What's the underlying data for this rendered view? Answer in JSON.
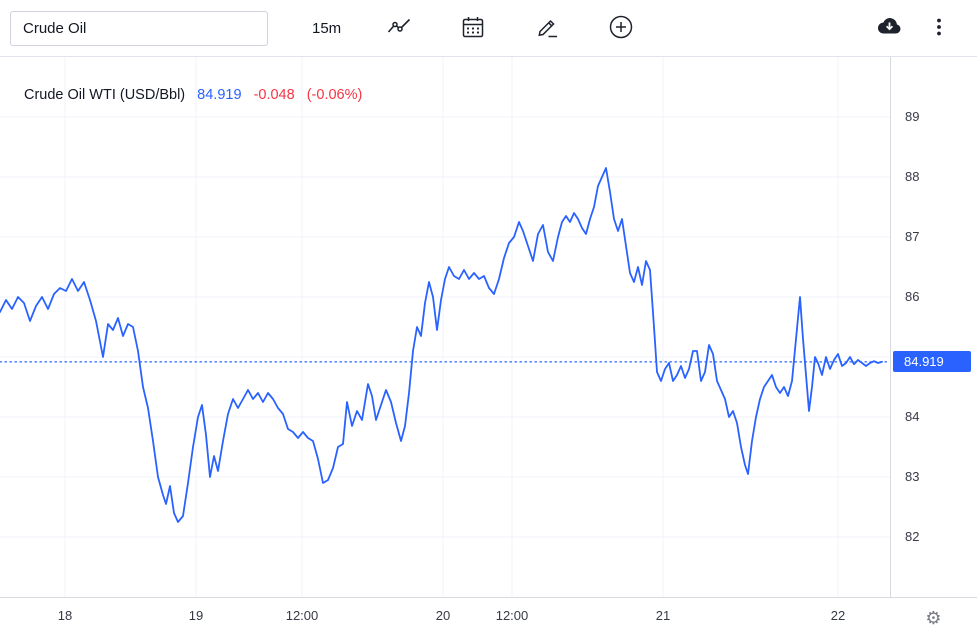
{
  "toolbar": {
    "symbol_value": "Crude Oil",
    "timeframe_label": "15m",
    "icons": [
      "line-style-icon",
      "calendar-icon",
      "draw-icon",
      "add-icon",
      "download-icon",
      "kebab-menu-icon"
    ]
  },
  "legend": {
    "title": "Crude Oil WTI (USD/Bbl)",
    "price": "84.919",
    "change": "-0.048",
    "change_pct": "(-0.06%)"
  },
  "price_axis": {
    "tag_label": "84.919"
  },
  "colors": {
    "line": "#2962ff",
    "price_tag_bg": "#2962ff",
    "price_blue": "#2962ff",
    "change_red": "#f23645",
    "grid": "#f0f3fa",
    "axis_text": "#363a45",
    "icon_dark": "#1e222d"
  },
  "chart_data": {
    "type": "line",
    "title": "Crude Oil WTI (USD/Bbl)",
    "timeframe": "15m",
    "last_price": 84.919,
    "change": -0.048,
    "change_pct": "-0.06%",
    "ylim": [
      81.0,
      90.0
    ],
    "x_domain": [
      0,
      890
    ],
    "y_ticks": [
      89,
      88,
      87,
      86,
      84,
      83,
      82
    ],
    "grid_values": [
      82,
      83,
      84,
      85,
      86,
      87,
      88,
      89
    ],
    "price_line": 84.919,
    "x_ticks": [
      {
        "label": "18",
        "x": 65
      },
      {
        "label": "19",
        "x": 196
      },
      {
        "label": "12:00",
        "x": 302
      },
      {
        "label": "20",
        "x": 443
      },
      {
        "label": "12:00",
        "x": 512
      },
      {
        "label": "21",
        "x": 663
      },
      {
        "label": "22",
        "x": 838
      }
    ],
    "points": [
      [
        0,
        85.75
      ],
      [
        6,
        85.95
      ],
      [
        12,
        85.8
      ],
      [
        18,
        86.0
      ],
      [
        24,
        85.9
      ],
      [
        30,
        85.6
      ],
      [
        36,
        85.85
      ],
      [
        42,
        86.0
      ],
      [
        48,
        85.8
      ],
      [
        54,
        86.05
      ],
      [
        60,
        86.15
      ],
      [
        66,
        86.1
      ],
      [
        72,
        86.3
      ],
      [
        78,
        86.1
      ],
      [
        84,
        86.25
      ],
      [
        90,
        85.95
      ],
      [
        96,
        85.6
      ],
      [
        103,
        85.0
      ],
      [
        108,
        85.55
      ],
      [
        113,
        85.45
      ],
      [
        118,
        85.65
      ],
      [
        123,
        85.35
      ],
      [
        128,
        85.55
      ],
      [
        133,
        85.5
      ],
      [
        138,
        85.1
      ],
      [
        143,
        84.5
      ],
      [
        148,
        84.15
      ],
      [
        153,
        83.6
      ],
      [
        158,
        83.0
      ],
      [
        163,
        82.7
      ],
      [
        166,
        82.55
      ],
      [
        170,
        82.85
      ],
      [
        174,
        82.4
      ],
      [
        178,
        82.25
      ],
      [
        183,
        82.35
      ],
      [
        188,
        82.9
      ],
      [
        193,
        83.5
      ],
      [
        198,
        84.0
      ],
      [
        202,
        84.2
      ],
      [
        206,
        83.7
      ],
      [
        210,
        83.0
      ],
      [
        214,
        83.35
      ],
      [
        218,
        83.1
      ],
      [
        223,
        83.6
      ],
      [
        228,
        84.05
      ],
      [
        233,
        84.3
      ],
      [
        238,
        84.15
      ],
      [
        243,
        84.3
      ],
      [
        248,
        84.45
      ],
      [
        253,
        84.3
      ],
      [
        258,
        84.4
      ],
      [
        263,
        84.25
      ],
      [
        268,
        84.4
      ],
      [
        273,
        84.3
      ],
      [
        278,
        84.15
      ],
      [
        283,
        84.05
      ],
      [
        288,
        83.8
      ],
      [
        293,
        83.75
      ],
      [
        298,
        83.65
      ],
      [
        303,
        83.75
      ],
      [
        308,
        83.65
      ],
      [
        313,
        83.6
      ],
      [
        318,
        83.3
      ],
      [
        323,
        82.9
      ],
      [
        328,
        82.95
      ],
      [
        333,
        83.15
      ],
      [
        338,
        83.5
      ],
      [
        343,
        83.55
      ],
      [
        347,
        84.25
      ],
      [
        352,
        83.85
      ],
      [
        357,
        84.1
      ],
      [
        362,
        83.95
      ],
      [
        368,
        84.55
      ],
      [
        372,
        84.35
      ],
      [
        376,
        83.95
      ],
      [
        381,
        84.2
      ],
      [
        386,
        84.45
      ],
      [
        391,
        84.25
      ],
      [
        396,
        83.9
      ],
      [
        401,
        83.6
      ],
      [
        405,
        83.85
      ],
      [
        409,
        84.4
      ],
      [
        413,
        85.1
      ],
      [
        417,
        85.5
      ],
      [
        421,
        85.35
      ],
      [
        425,
        85.9
      ],
      [
        429,
        86.25
      ],
      [
        433,
        86.0
      ],
      [
        437,
        85.45
      ],
      [
        441,
        85.95
      ],
      [
        445,
        86.3
      ],
      [
        449,
        86.5
      ],
      [
        454,
        86.35
      ],
      [
        459,
        86.3
      ],
      [
        464,
        86.45
      ],
      [
        469,
        86.3
      ],
      [
        474,
        86.4
      ],
      [
        479,
        86.3
      ],
      [
        484,
        86.35
      ],
      [
        489,
        86.15
      ],
      [
        494,
        86.05
      ],
      [
        499,
        86.3
      ],
      [
        504,
        86.65
      ],
      [
        509,
        86.9
      ],
      [
        514,
        87.0
      ],
      [
        519,
        87.25
      ],
      [
        523,
        87.1
      ],
      [
        528,
        86.85
      ],
      [
        533,
        86.6
      ],
      [
        538,
        87.05
      ],
      [
        543,
        87.2
      ],
      [
        548,
        86.75
      ],
      [
        553,
        86.6
      ],
      [
        558,
        87.0
      ],
      [
        562,
        87.25
      ],
      [
        566,
        87.35
      ],
      [
        570,
        87.25
      ],
      [
        574,
        87.4
      ],
      [
        578,
        87.3
      ],
      [
        582,
        87.15
      ],
      [
        586,
        87.05
      ],
      [
        590,
        87.3
      ],
      [
        594,
        87.5
      ],
      [
        598,
        87.85
      ],
      [
        602,
        88.0
      ],
      [
        606,
        88.15
      ],
      [
        610,
        87.75
      ],
      [
        614,
        87.3
      ],
      [
        618,
        87.1
      ],
      [
        622,
        87.3
      ],
      [
        626,
        86.85
      ],
      [
        630,
        86.4
      ],
      [
        634,
        86.25
      ],
      [
        638,
        86.5
      ],
      [
        642,
        86.2
      ],
      [
        646,
        86.6
      ],
      [
        650,
        86.45
      ],
      [
        654,
        85.5
      ],
      [
        657,
        84.75
      ],
      [
        661,
        84.6
      ],
      [
        665,
        84.8
      ],
      [
        669,
        84.9
      ],
      [
        673,
        84.6
      ],
      [
        677,
        84.7
      ],
      [
        681,
        84.85
      ],
      [
        685,
        84.65
      ],
      [
        689,
        84.8
      ],
      [
        693,
        85.1
      ],
      [
        697,
        85.1
      ],
      [
        701,
        84.6
      ],
      [
        705,
        84.75
      ],
      [
        709,
        85.2
      ],
      [
        713,
        85.05
      ],
      [
        717,
        84.6
      ],
      [
        721,
        84.45
      ],
      [
        725,
        84.3
      ],
      [
        729,
        84.0
      ],
      [
        733,
        84.1
      ],
      [
        737,
        83.9
      ],
      [
        741,
        83.5
      ],
      [
        745,
        83.2
      ],
      [
        748,
        83.05
      ],
      [
        752,
        83.6
      ],
      [
        756,
        84.0
      ],
      [
        760,
        84.3
      ],
      [
        764,
        84.5
      ],
      [
        768,
        84.6
      ],
      [
        772,
        84.7
      ],
      [
        776,
        84.5
      ],
      [
        780,
        84.4
      ],
      [
        784,
        84.5
      ],
      [
        788,
        84.35
      ],
      [
        792,
        84.6
      ],
      [
        796,
        85.3
      ],
      [
        800,
        86.0
      ],
      [
        803,
        85.3
      ],
      [
        806,
        84.7
      ],
      [
        809,
        84.1
      ],
      [
        812,
        84.5
      ],
      [
        815,
        85.0
      ],
      [
        818,
        84.9
      ],
      [
        822,
        84.7
      ],
      [
        826,
        85.0
      ],
      [
        830,
        84.8
      ],
      [
        834,
        84.95
      ],
      [
        838,
        85.05
      ],
      [
        842,
        84.85
      ],
      [
        846,
        84.9
      ],
      [
        850,
        85.0
      ],
      [
        854,
        84.88
      ],
      [
        858,
        84.95
      ],
      [
        862,
        84.9
      ],
      [
        866,
        84.85
      ],
      [
        870,
        84.9
      ],
      [
        874,
        84.93
      ],
      [
        878,
        84.9
      ],
      [
        882,
        84.92
      ]
    ]
  }
}
